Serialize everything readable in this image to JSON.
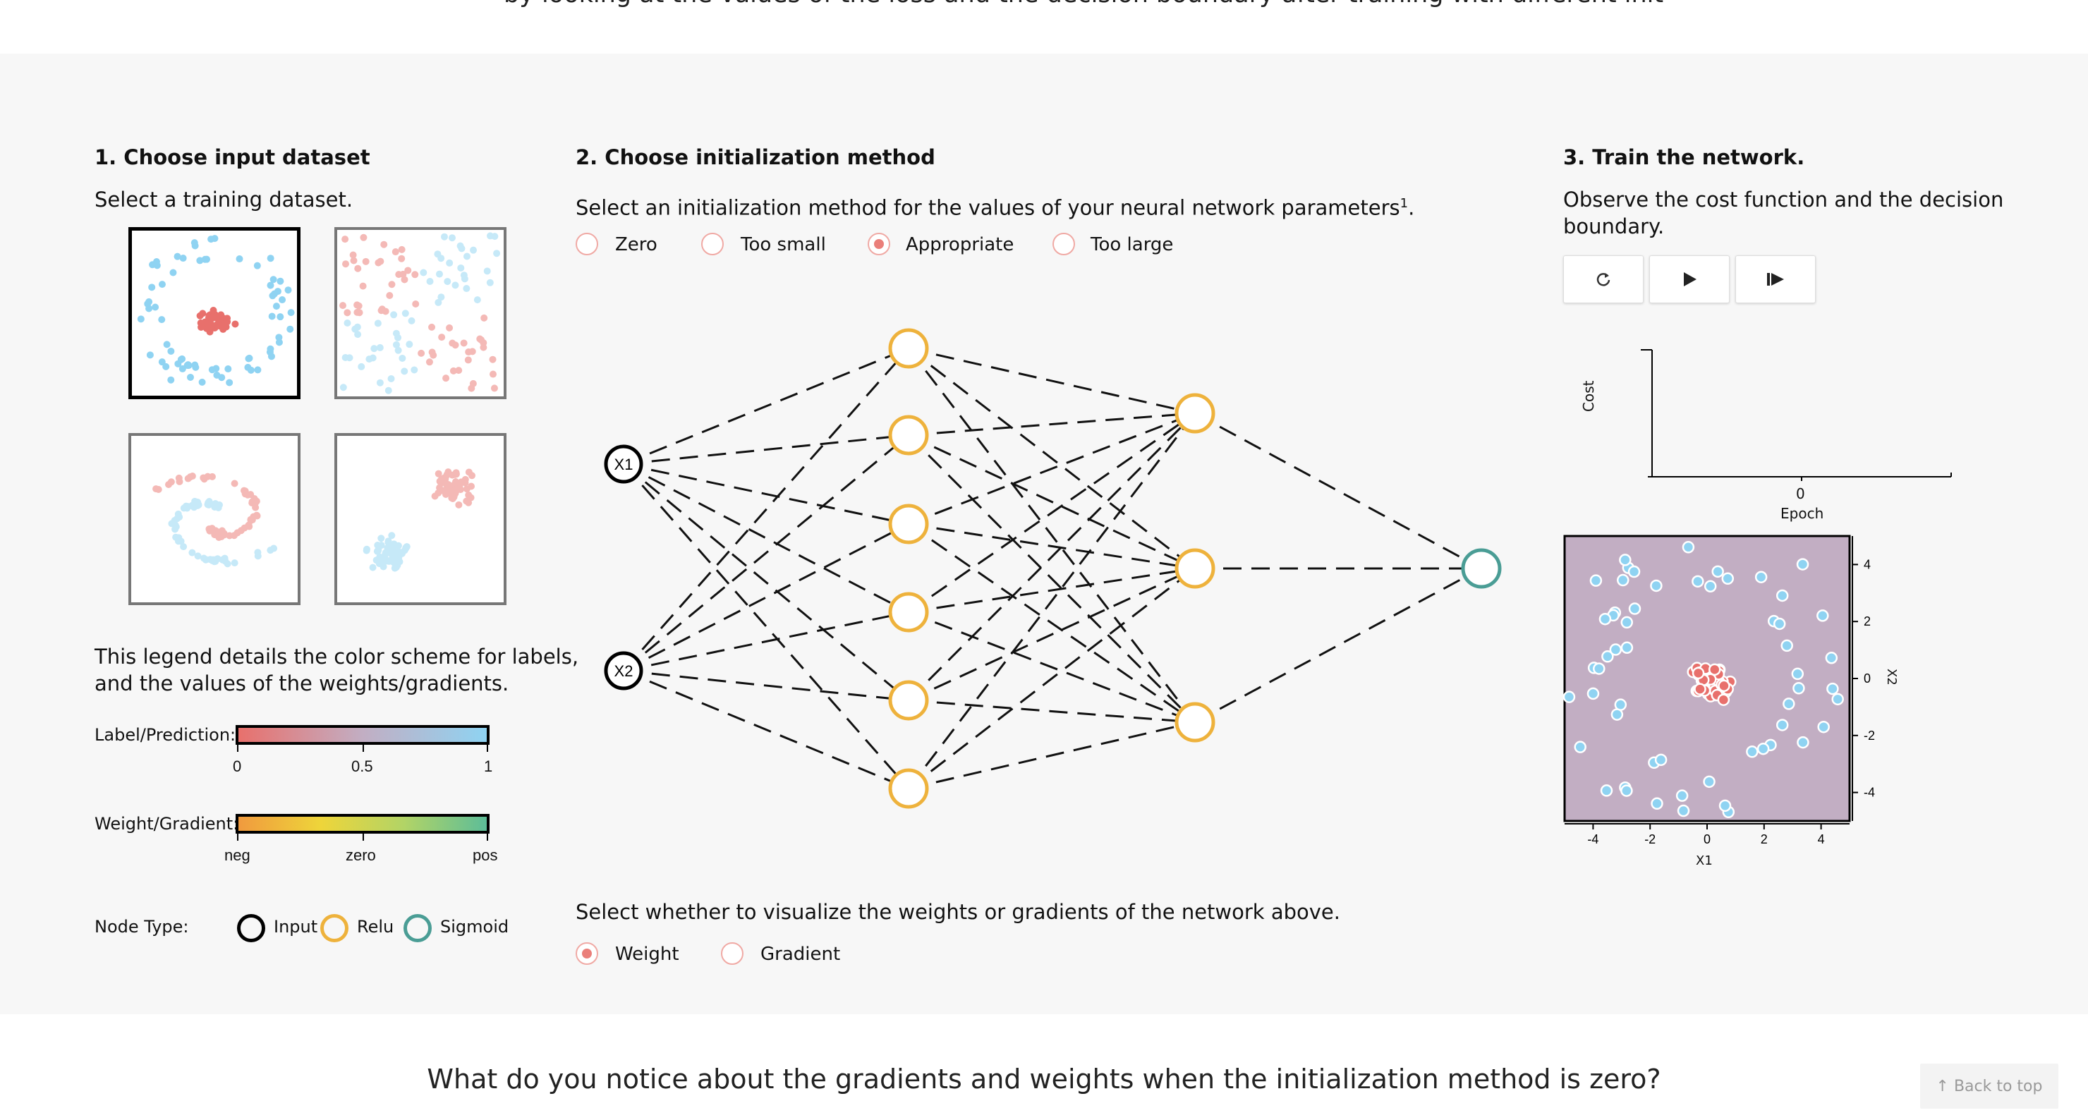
{
  "top_text_partial": "by looking at the values of the loss and the decision boundary after training with different init",
  "step1": {
    "title": "1. Choose input dataset",
    "subtitle": "Select a training dataset.",
    "legend_description_line1": "This legend details the color scheme for labels,",
    "legend_description_line2": "and the values of the weights/gradients.",
    "label_legend": {
      "title": "Label/Prediction:",
      "ticks": [
        "0",
        "0.5",
        "1"
      ]
    },
    "weight_legend": {
      "title": "Weight/Gradient:",
      "ticks": [
        "neg",
        "zero",
        "pos"
      ]
    },
    "node_type": {
      "title": "Node Type:",
      "items": [
        "Input",
        "Relu",
        "Sigmoid"
      ]
    }
  },
  "step2": {
    "title": "2. Choose initialization method",
    "subtitle": "Select an initialization method for the values of your neural network parameters",
    "footnote": "1",
    "period": ".",
    "init_options": [
      {
        "label": "Zero",
        "checked": false
      },
      {
        "label": "Too small",
        "checked": false
      },
      {
        "label": "Appropriate",
        "checked": true
      },
      {
        "label": "Too large",
        "checked": false
      }
    ],
    "input_nodes": [
      "X1",
      "X2"
    ],
    "visualize_prompt": "Select whether to visualize the weights or gradients of the network above.",
    "visualize_options": [
      {
        "label": "Weight",
        "checked": true
      },
      {
        "label": "Gradient",
        "checked": false
      }
    ]
  },
  "step3": {
    "title": "3. Train the network.",
    "subtitle_line1": "Observe the cost function and the decision",
    "subtitle_line2": "boundary.",
    "buttons": [
      "reset",
      "play",
      "step"
    ],
    "cost_chart": {
      "ylabel": "Cost",
      "xlabel": "Epoch",
      "x_tick": "0"
    },
    "boundary_plot": {
      "xlabel": "X1",
      "ylabel": "X2",
      "x_ticks": [
        "-4",
        "-2",
        "0",
        "2",
        "4"
      ],
      "y_ticks": [
        "4",
        "2",
        "0",
        "-2",
        "-4"
      ]
    }
  },
  "colors": {
    "relu": "#eeb23c",
    "input": "#000000",
    "sigmoid": "#4a9d95",
    "positive": "#8fd3f2",
    "negative": "#e8706c",
    "boundary_bg": "#c2aec3"
  },
  "question": "What do you notice about the gradients and weights when the initialization method is zero?",
  "back_to_top": "↑ Back to top"
}
